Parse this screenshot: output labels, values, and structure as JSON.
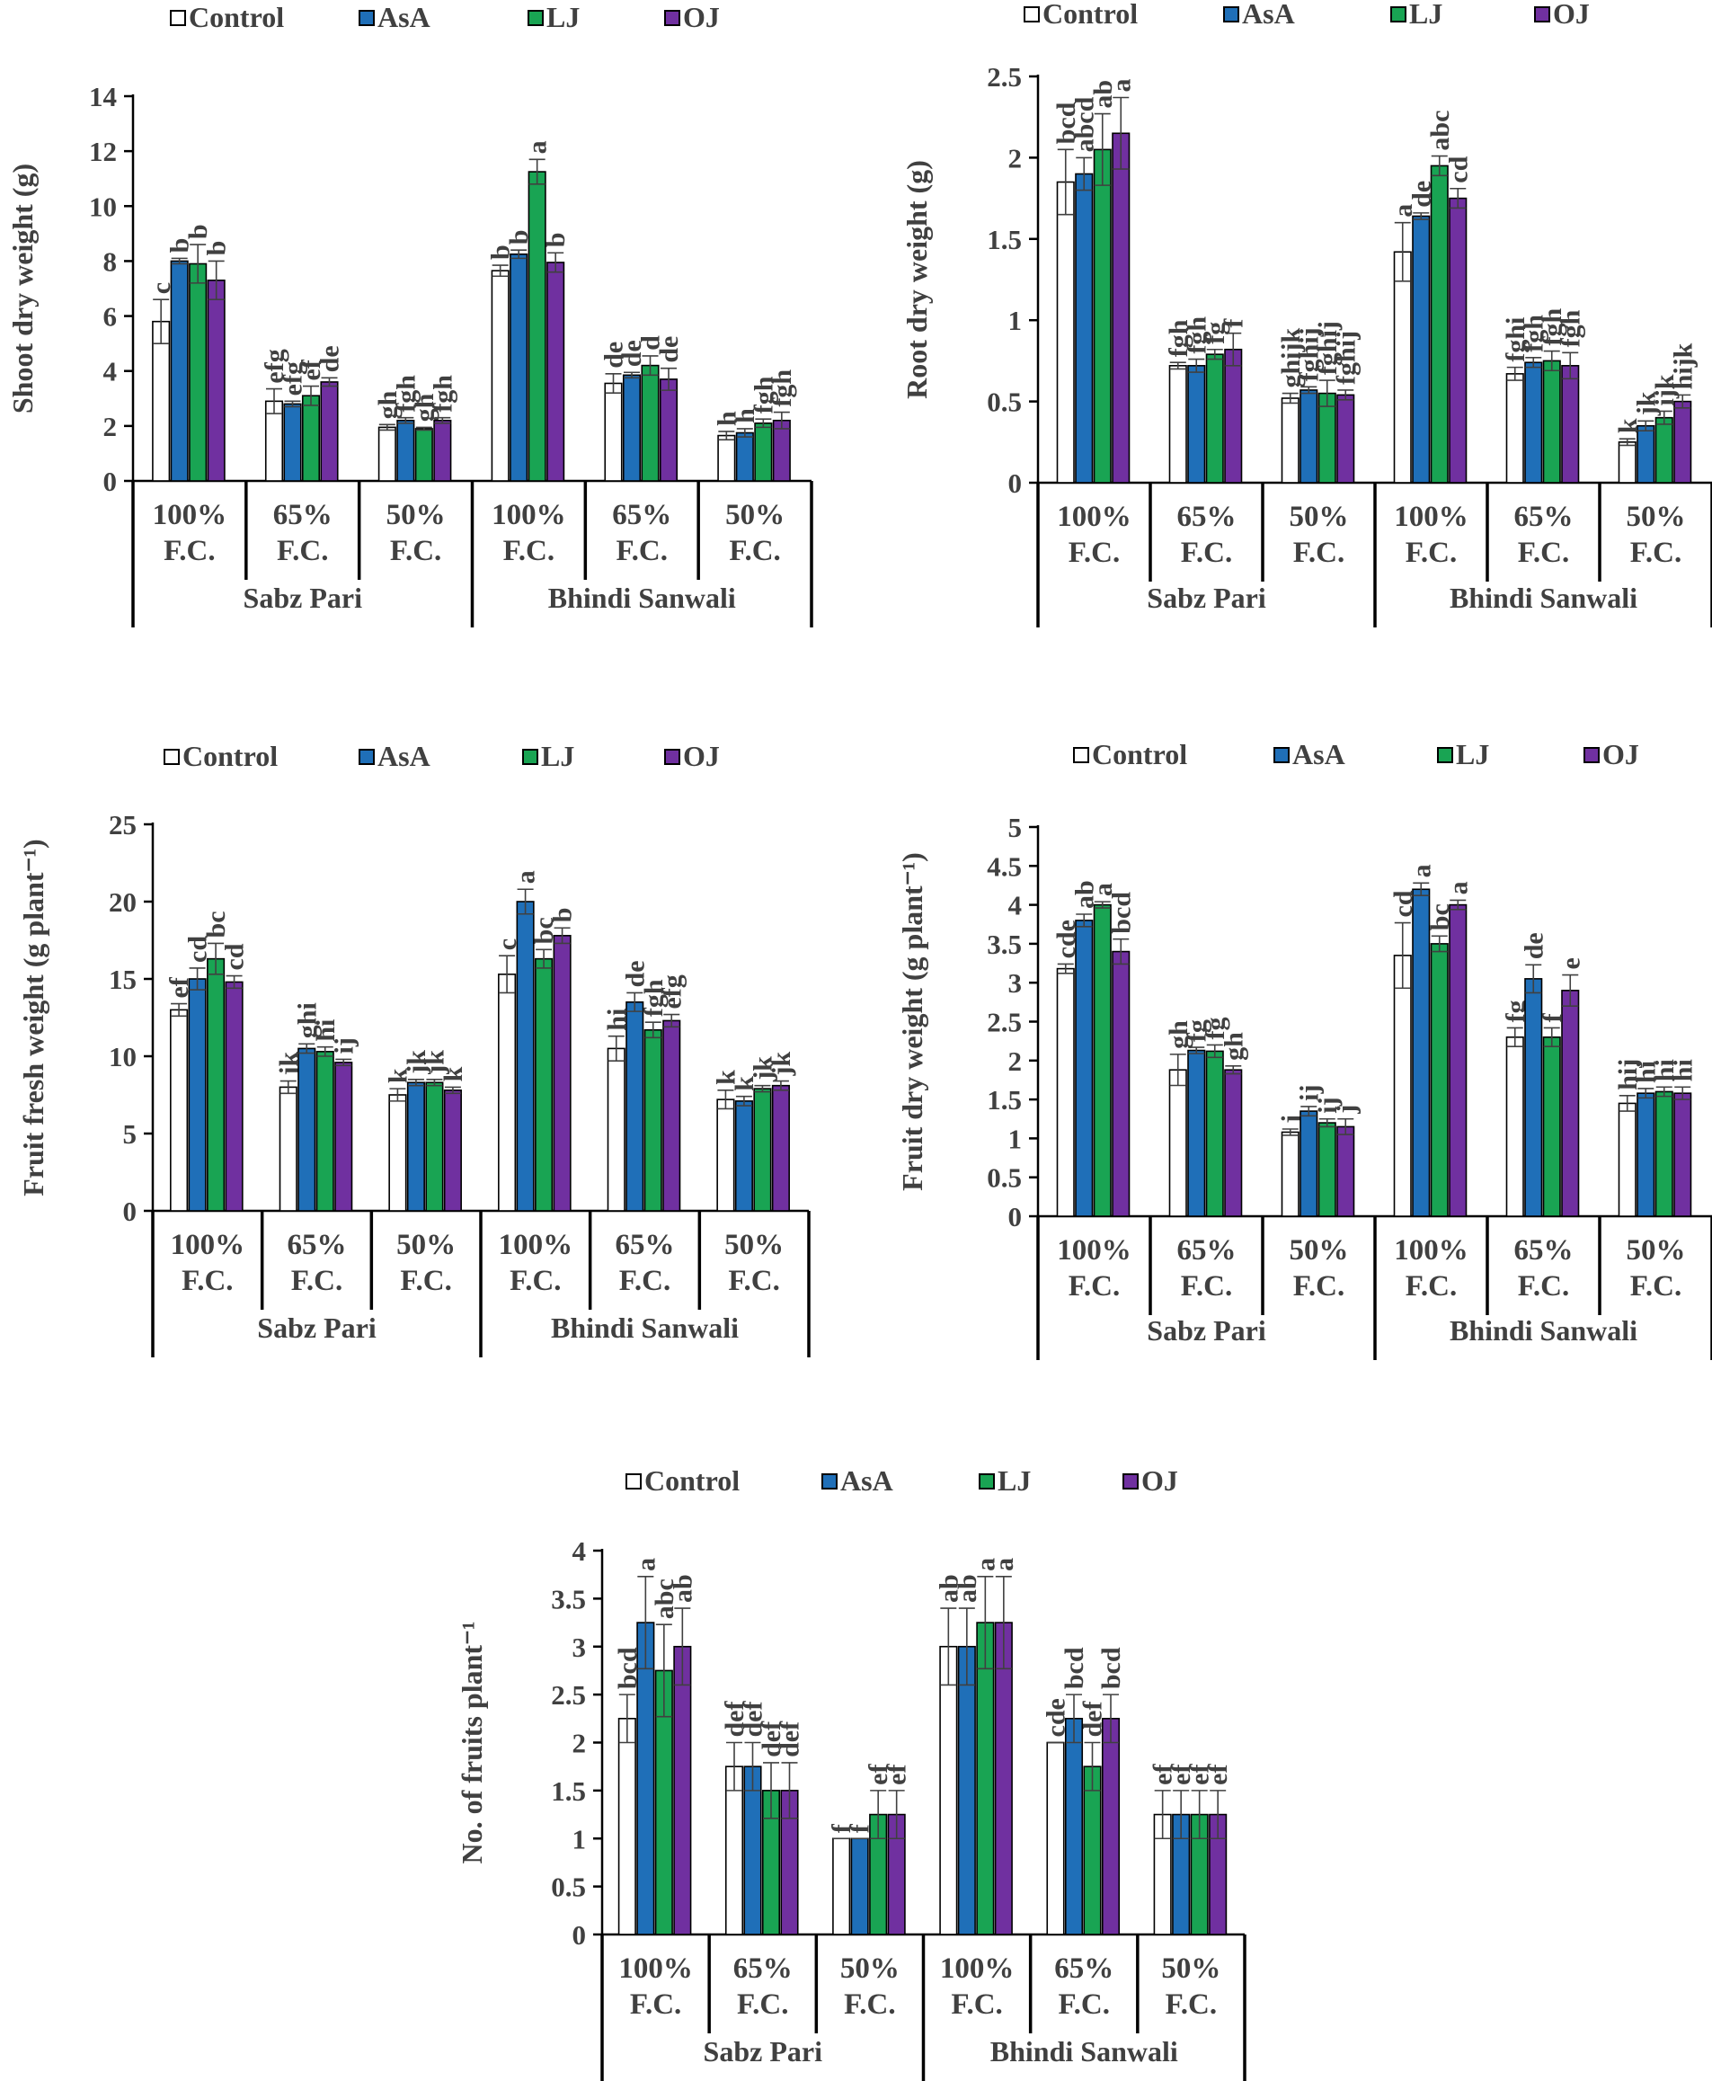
{
  "colors": {
    "Control": "#ffffff",
    "AsA": "#1f6fb8",
    "LJ": "#19a453",
    "OJ": "#7030a0",
    "text": "#404040"
  },
  "legend": [
    "Control",
    "AsA",
    "LJ",
    "OJ"
  ],
  "treatments": [
    "100% F.C.",
    "65% F.C.",
    "50% F.C."
  ],
  "varieties": [
    "Sabz Pari",
    "Bhindi Sanwali"
  ],
  "chart_data": [
    {
      "type": "bar",
      "title": "",
      "ylabel": "Shoot dry weight (g)",
      "xlabel": "",
      "ylim": [
        0,
        14
      ],
      "ytick_step": 2,
      "ytick_decimals": 0,
      "categories": [
        "100% F.C.",
        "65% F.C.",
        "50% F.C.",
        "100% F.C.",
        "65% F.C.",
        "50% F.C."
      ],
      "groups": [
        "Sabz Pari",
        "Bhindi Sanwali"
      ],
      "series": [
        {
          "name": "Control",
          "values": [
            5.8,
            2.9,
            1.95,
            7.65,
            3.55,
            1.65
          ],
          "errors": [
            0.8,
            0.45,
            0.1,
            0.2,
            0.35,
            0.15
          ],
          "letters": [
            "c",
            "efg",
            "gh",
            "b",
            "de",
            "h"
          ]
        },
        {
          "name": "AsA",
          "values": [
            8.0,
            2.8,
            2.2,
            8.25,
            3.85,
            1.75
          ],
          "errors": [
            0.1,
            0.1,
            0.1,
            0.15,
            0.1,
            0.15
          ],
          "letters": [
            "b",
            "efg",
            "fgh",
            "b",
            "de",
            "h"
          ]
        },
        {
          "name": "LJ",
          "values": [
            7.9,
            3.1,
            1.9,
            11.25,
            4.2,
            2.1
          ],
          "errors": [
            0.7,
            0.35,
            0.05,
            0.45,
            0.35,
            0.15
          ],
          "letters": [
            "b",
            "ef",
            "gh",
            "a",
            "d",
            "fgh"
          ]
        },
        {
          "name": "OJ",
          "values": [
            7.3,
            3.6,
            2.2,
            7.95,
            3.7,
            2.2
          ],
          "errors": [
            0.7,
            0.15,
            0.1,
            0.35,
            0.4,
            0.3
          ],
          "letters": [
            "b",
            "de",
            "fgh",
            "b",
            "de",
            "fgh"
          ]
        }
      ]
    },
    {
      "type": "bar",
      "title": "",
      "ylabel": "Root dry weight (g)",
      "xlabel": "",
      "ylim": [
        0,
        2.5
      ],
      "ytick_step": 0.5,
      "ytick_decimals": 1,
      "categories": [
        "100% F.C.",
        "65% F.C.",
        "50% F.C.",
        "100% F.C.",
        "65% F.C.",
        "50% F.C."
      ],
      "groups": [
        "Sabz Pari",
        "Bhindi Sanwali"
      ],
      "series": [
        {
          "name": "Control",
          "values": [
            1.85,
            0.72,
            0.52,
            1.42,
            0.67,
            0.25
          ],
          "errors": [
            0.2,
            0.02,
            0.03,
            0.18,
            0.04,
            0.02
          ],
          "letters": [
            "bcd",
            "fgh",
            "ghijk",
            "a",
            "fghi",
            "k"
          ]
        },
        {
          "name": "AsA",
          "values": [
            1.9,
            0.72,
            0.57,
            1.64,
            0.74,
            0.35
          ],
          "errors": [
            0.1,
            0.04,
            0.02,
            0.02,
            0.03,
            0.03
          ],
          "letters": [
            "abcd",
            "fgh",
            "fghij",
            "de",
            "fgh",
            "jk"
          ]
        },
        {
          "name": "LJ",
          "values": [
            2.05,
            0.79,
            0.55,
            1.95,
            0.75,
            0.4
          ],
          "errors": [
            0.22,
            0.03,
            0.08,
            0.06,
            0.06,
            0.04
          ],
          "letters": [
            "ab",
            "fg",
            "fghij",
            "abc",
            "fgh",
            "ijk"
          ]
        },
        {
          "name": "OJ",
          "values": [
            2.15,
            0.82,
            0.54,
            1.75,
            0.72,
            0.5
          ],
          "errors": [
            0.22,
            0.1,
            0.03,
            0.06,
            0.08,
            0.04
          ],
          "letters": [
            "a",
            "f",
            "fghij",
            "cd",
            "fgh",
            "hijk"
          ]
        }
      ]
    },
    {
      "type": "bar",
      "title": "",
      "ylabel": "Fruit fresh weight (g plant⁻¹)",
      "xlabel": "",
      "ylim": [
        0,
        25
      ],
      "ytick_step": 5,
      "ytick_decimals": 0,
      "categories": [
        "100% F.C.",
        "65% F.C.",
        "50% F.C.",
        "100% F.C.",
        "65% F.C.",
        "50% F.C."
      ],
      "groups": [
        "Sabz Pari",
        "Bhindi Sanwali"
      ],
      "series": [
        {
          "name": "Control",
          "values": [
            13.0,
            8.0,
            7.5,
            15.3,
            10.5,
            7.2
          ],
          "errors": [
            0.4,
            0.4,
            0.4,
            1.2,
            0.8,
            0.6
          ],
          "letters": [
            "ef",
            "jk",
            "k",
            "c",
            "hi",
            "k"
          ]
        },
        {
          "name": "AsA",
          "values": [
            15.0,
            10.5,
            8.3,
            20.0,
            13.5,
            7.1
          ],
          "errors": [
            0.7,
            0.3,
            0.2,
            0.8,
            0.6,
            0.3
          ],
          "letters": [
            "cd",
            "ghi",
            "jk",
            "a",
            "de",
            "k"
          ]
        },
        {
          "name": "LJ",
          "values": [
            16.3,
            10.3,
            8.3,
            16.3,
            11.7,
            7.9
          ],
          "errors": [
            1.0,
            0.3,
            0.2,
            0.6,
            0.5,
            0.2
          ],
          "letters": [
            "bc",
            "hi",
            "jk",
            "bc",
            "fgh",
            "jk"
          ]
        },
        {
          "name": "OJ",
          "values": [
            14.8,
            9.6,
            7.8,
            17.8,
            12.3,
            8.1
          ],
          "errors": [
            0.4,
            0.2,
            0.2,
            0.5,
            0.4,
            0.3
          ],
          "letters": [
            "cd",
            "ij",
            "k",
            "b",
            "efg",
            "jk"
          ]
        }
      ]
    },
    {
      "type": "bar",
      "title": "",
      "ylabel": "Fruit dry weight (g plant⁻¹)",
      "xlabel": "",
      "ylim": [
        0,
        5
      ],
      "ytick_step": 0.5,
      "ytick_decimals": 1,
      "categories": [
        "100% F.C.",
        "65% F.C.",
        "50% F.C.",
        "100% F.C.",
        "65% F.C.",
        "50% F.C."
      ],
      "groups": [
        "Sabz Pari",
        "Bhindi Sanwali"
      ],
      "series": [
        {
          "name": "Control",
          "values": [
            3.18,
            1.88,
            1.08,
            3.35,
            2.3,
            1.45
          ],
          "errors": [
            0.06,
            0.2,
            0.04,
            0.42,
            0.12,
            0.1
          ],
          "letters": [
            "cde",
            "gh",
            "j",
            "cd",
            "fg",
            "hij"
          ]
        },
        {
          "name": "AsA",
          "values": [
            3.8,
            2.13,
            1.35,
            4.2,
            3.05,
            1.58
          ],
          "errors": [
            0.08,
            0.04,
            0.06,
            0.08,
            0.18,
            0.06
          ],
          "letters": [
            "ab",
            "fg",
            "ij",
            "a",
            "de",
            "hi"
          ]
        },
        {
          "name": "LJ",
          "values": [
            4.0,
            2.12,
            1.2,
            3.5,
            2.3,
            1.6
          ],
          "errors": [
            0.04,
            0.08,
            0.05,
            0.1,
            0.12,
            0.06
          ],
          "letters": [
            "a",
            "fg",
            "ij",
            "bc",
            "f",
            "hi"
          ]
        },
        {
          "name": "OJ",
          "values": [
            3.4,
            1.88,
            1.15,
            4.0,
            2.9,
            1.58
          ],
          "errors": [
            0.16,
            0.05,
            0.1,
            0.06,
            0.2,
            0.08
          ],
          "letters": [
            "bcd",
            "gh",
            "j",
            "a",
            "e",
            "hi"
          ]
        }
      ]
    },
    {
      "type": "bar",
      "title": "",
      "ylabel": "No. of fruits plant⁻¹",
      "xlabel": "",
      "ylim": [
        0,
        4
      ],
      "ytick_step": 0.5,
      "ytick_decimals": 1,
      "categories": [
        "100% F.C.",
        "65% F.C.",
        "50% F.C.",
        "100% F.C.",
        "65% F.C.",
        "50% F.C."
      ],
      "groups": [
        "Sabz Pari",
        "Bhindi Sanwali"
      ],
      "series": [
        {
          "name": "Control",
          "values": [
            2.25,
            1.75,
            1.0,
            3.0,
            2.0,
            1.25
          ],
          "errors": [
            0.25,
            0.25,
            0.0,
            0.4,
            0.0,
            0.25
          ],
          "letters": [
            "bcd",
            "def",
            "f",
            "ab",
            "cde",
            "ef"
          ]
        },
        {
          "name": "AsA",
          "values": [
            3.25,
            1.75,
            1.0,
            3.0,
            2.25,
            1.25
          ],
          "errors": [
            0.48,
            0.25,
            0.0,
            0.4,
            0.25,
            0.25
          ],
          "letters": [
            "a",
            "def",
            "f",
            "ab",
            "bcd",
            "ef"
          ]
        },
        {
          "name": "LJ",
          "values": [
            2.75,
            1.5,
            1.25,
            3.25,
            1.75,
            1.25
          ],
          "errors": [
            0.48,
            0.29,
            0.25,
            0.48,
            0.25,
            0.25
          ],
          "letters": [
            "abc",
            "def",
            "ef",
            "a",
            "def",
            "ef"
          ]
        },
        {
          "name": "OJ",
          "values": [
            3.0,
            1.5,
            1.25,
            3.25,
            2.25,
            1.25
          ],
          "errors": [
            0.4,
            0.29,
            0.25,
            0.48,
            0.25,
            0.25
          ],
          "letters": [
            "ab",
            "def",
            "ef",
            "a",
            "bcd",
            "ef"
          ]
        }
      ]
    }
  ]
}
